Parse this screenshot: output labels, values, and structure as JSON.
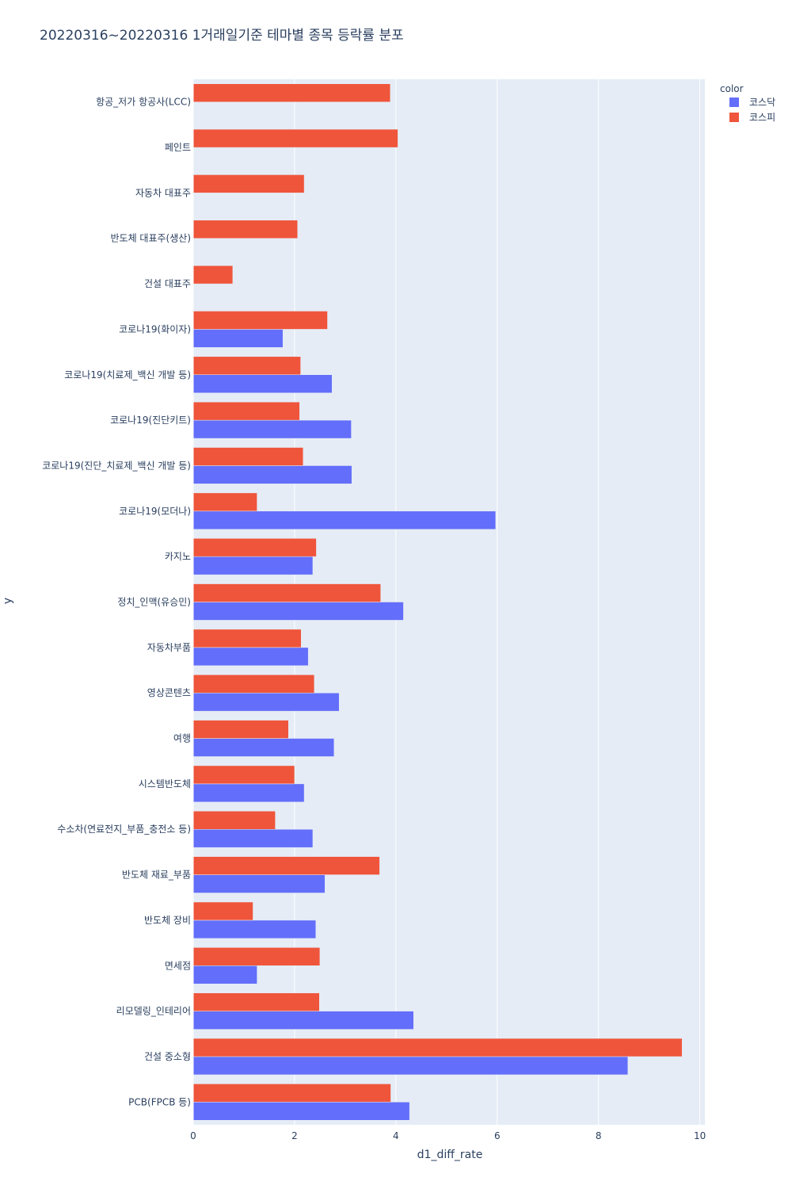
{
  "chart_data": {
    "type": "bar",
    "orientation": "horizontal",
    "barmode": "group",
    "title": "20220316~20220316 1거래일기준 테마별 종목 등락률 분포",
    "xlabel": "d1_diff_rate",
    "ylabel": "y",
    "xlim": [
      0,
      10.1
    ],
    "xticks": [
      0,
      2,
      4,
      6,
      8,
      10
    ],
    "grid": true,
    "legend": {
      "title": "color",
      "placement": "top-right"
    },
    "colors": {
      "plot_bg": "#e5ecf6",
      "kosdaq": "#636efa",
      "kospi": "#ef553b"
    },
    "categories": [
      "항공_저가 항공사(LCC)",
      "페인트",
      "자동차 대표주",
      "반도체 대표주(생산)",
      "건설 대표주",
      "코로나19(화이자)",
      "코로나19(치료제_백신 개발 등)",
      "코로나19(진단키트)",
      "코로나19(진단_치료제_백신 개발 등)",
      "코로나19(모더나)",
      "카지노",
      "정치_인맥(유승민)",
      "자동차부품",
      "영상콘텐츠",
      "여행",
      "시스템반도체",
      "수소차(연료전지_부품_충전소 등)",
      "반도체 재료_부품",
      "반도체 장비",
      "면세점",
      "리모델링_인테리어",
      "건설 중소형",
      "PCB(FPCB 등)"
    ],
    "series": [
      {
        "name": "코스닥",
        "color": "#636efa",
        "values": [
          null,
          null,
          null,
          null,
          null,
          1.77,
          2.74,
          3.12,
          3.13,
          5.97,
          2.36,
          4.15,
          2.27,
          2.88,
          2.78,
          2.19,
          2.36,
          2.6,
          2.42,
          1.26,
          4.35,
          8.58,
          4.27
        ]
      },
      {
        "name": "코스피",
        "color": "#ef553b",
        "values": [
          3.89,
          4.04,
          2.19,
          2.06,
          0.78,
          2.65,
          2.12,
          2.1,
          2.17,
          1.26,
          2.43,
          3.7,
          2.13,
          2.39,
          1.88,
          2.0,
          1.62,
          3.68,
          1.18,
          2.5,
          2.49,
          9.65,
          3.9
        ]
      }
    ]
  }
}
